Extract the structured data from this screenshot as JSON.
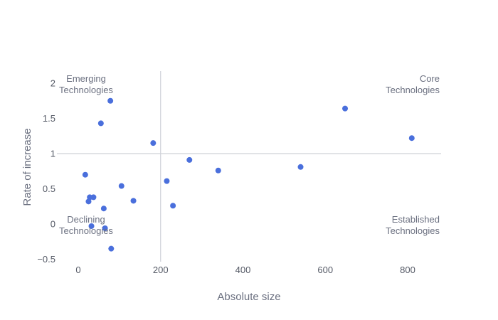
{
  "chart_data": {
    "type": "scatter",
    "title": "",
    "xlabel": "Absolute size",
    "ylabel": "Rate of increase",
    "xlim": [
      -50,
      880
    ],
    "ylim": [
      -0.6,
      2.2
    ],
    "xticks": [
      0,
      200,
      400,
      600,
      800
    ],
    "xtick_labels": [
      "0",
      "200",
      "400",
      "600",
      "800"
    ],
    "yticks": [
      -0.5,
      0,
      0.5,
      1,
      1.5,
      2
    ],
    "ytick_labels": [
      "−0.5",
      "0",
      "0.5",
      "1",
      "1.5",
      "2"
    ],
    "grid": false,
    "reference_lines": {
      "x": 200,
      "y": 1
    },
    "quadrant_labels": {
      "top_left": [
        "Emerging",
        "Technologies"
      ],
      "top_right": [
        "Core",
        "Technologies"
      ],
      "bottom_left": [
        "Declining",
        "Technologies"
      ],
      "bottom_right": [
        "Established",
        "Technologies"
      ]
    },
    "marker_color": "#4a6fdc",
    "points": [
      {
        "x": 17,
        "y": 0.7
      },
      {
        "x": 55,
        "y": 1.43
      },
      {
        "x": 78,
        "y": 1.75
      },
      {
        "x": 182,
        "y": 1.15
      },
      {
        "x": 28,
        "y": 0.38
      },
      {
        "x": 37,
        "y": 0.38
      },
      {
        "x": 25,
        "y": 0.32
      },
      {
        "x": 62,
        "y": 0.22
      },
      {
        "x": 105,
        "y": 0.54
      },
      {
        "x": 134,
        "y": 0.33
      },
      {
        "x": 32,
        "y": -0.03
      },
      {
        "x": 65,
        "y": -0.06
      },
      {
        "x": 80,
        "y": -0.35
      },
      {
        "x": 215,
        "y": 0.61
      },
      {
        "x": 230,
        "y": 0.26
      },
      {
        "x": 270,
        "y": 0.91
      },
      {
        "x": 340,
        "y": 0.76
      },
      {
        "x": 540,
        "y": 0.81
      },
      {
        "x": 648,
        "y": 1.64
      },
      {
        "x": 810,
        "y": 1.22
      }
    ]
  }
}
